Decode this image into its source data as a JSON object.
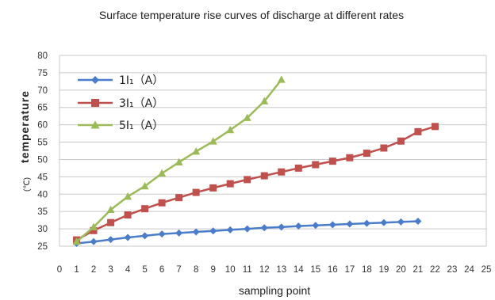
{
  "chart_data": {
    "type": "line",
    "title": "Surface temperature rise curves of discharge at different rates",
    "xlabel": "sampling point",
    "ylabel": "temperature",
    "yunit": "(℃)",
    "xlim": [
      0,
      25
    ],
    "ylim": [
      25,
      80
    ],
    "xticks": [
      0,
      1,
      2,
      3,
      4,
      5,
      6,
      7,
      8,
      9,
      10,
      11,
      12,
      13,
      14,
      15,
      16,
      17,
      18,
      19,
      20,
      21,
      22,
      23,
      24,
      25
    ],
    "yticks": [
      25,
      30,
      35,
      40,
      45,
      50,
      55,
      60,
      65,
      70,
      75,
      80
    ],
    "grid": true,
    "legend_position": "top-left",
    "series": [
      {
        "name": "1I₁（A）",
        "color": "#4a7cc9",
        "marker": "diamond",
        "x": [
          1,
          2,
          3,
          4,
          5,
          6,
          7,
          8,
          9,
          10,
          11,
          12,
          13,
          14,
          15,
          16,
          17,
          18,
          19,
          20,
          21
        ],
        "y": [
          25.8,
          26.3,
          26.9,
          27.5,
          28.0,
          28.5,
          28.8,
          29.1,
          29.4,
          29.7,
          30.0,
          30.3,
          30.5,
          30.8,
          31.0,
          31.2,
          31.4,
          31.6,
          31.8,
          32.0,
          32.2
        ]
      },
      {
        "name": "3I₁（A）",
        "color": "#c0504d",
        "marker": "square",
        "x": [
          1,
          2,
          3,
          4,
          5,
          6,
          7,
          8,
          9,
          10,
          11,
          12,
          13,
          14,
          15,
          16,
          17,
          18,
          19,
          20,
          21,
          22
        ],
        "y": [
          26.8,
          29.5,
          31.8,
          34.0,
          35.8,
          37.5,
          39.0,
          40.5,
          41.8,
          43.0,
          44.2,
          45.3,
          46.4,
          47.5,
          48.5,
          49.5,
          50.5,
          51.8,
          53.3,
          55.3,
          58.0,
          59.5
        ]
      },
      {
        "name": "5I₁（A）",
        "color": "#9bbb59",
        "marker": "triangle",
        "x": [
          1,
          2,
          3,
          4,
          5,
          6,
          7,
          8,
          9,
          10,
          11,
          12,
          13
        ],
        "y": [
          26.3,
          30.5,
          35.5,
          39.3,
          42.3,
          46.0,
          49.2,
          52.3,
          55.2,
          58.5,
          62.0,
          66.8,
          73.0
        ]
      }
    ]
  }
}
